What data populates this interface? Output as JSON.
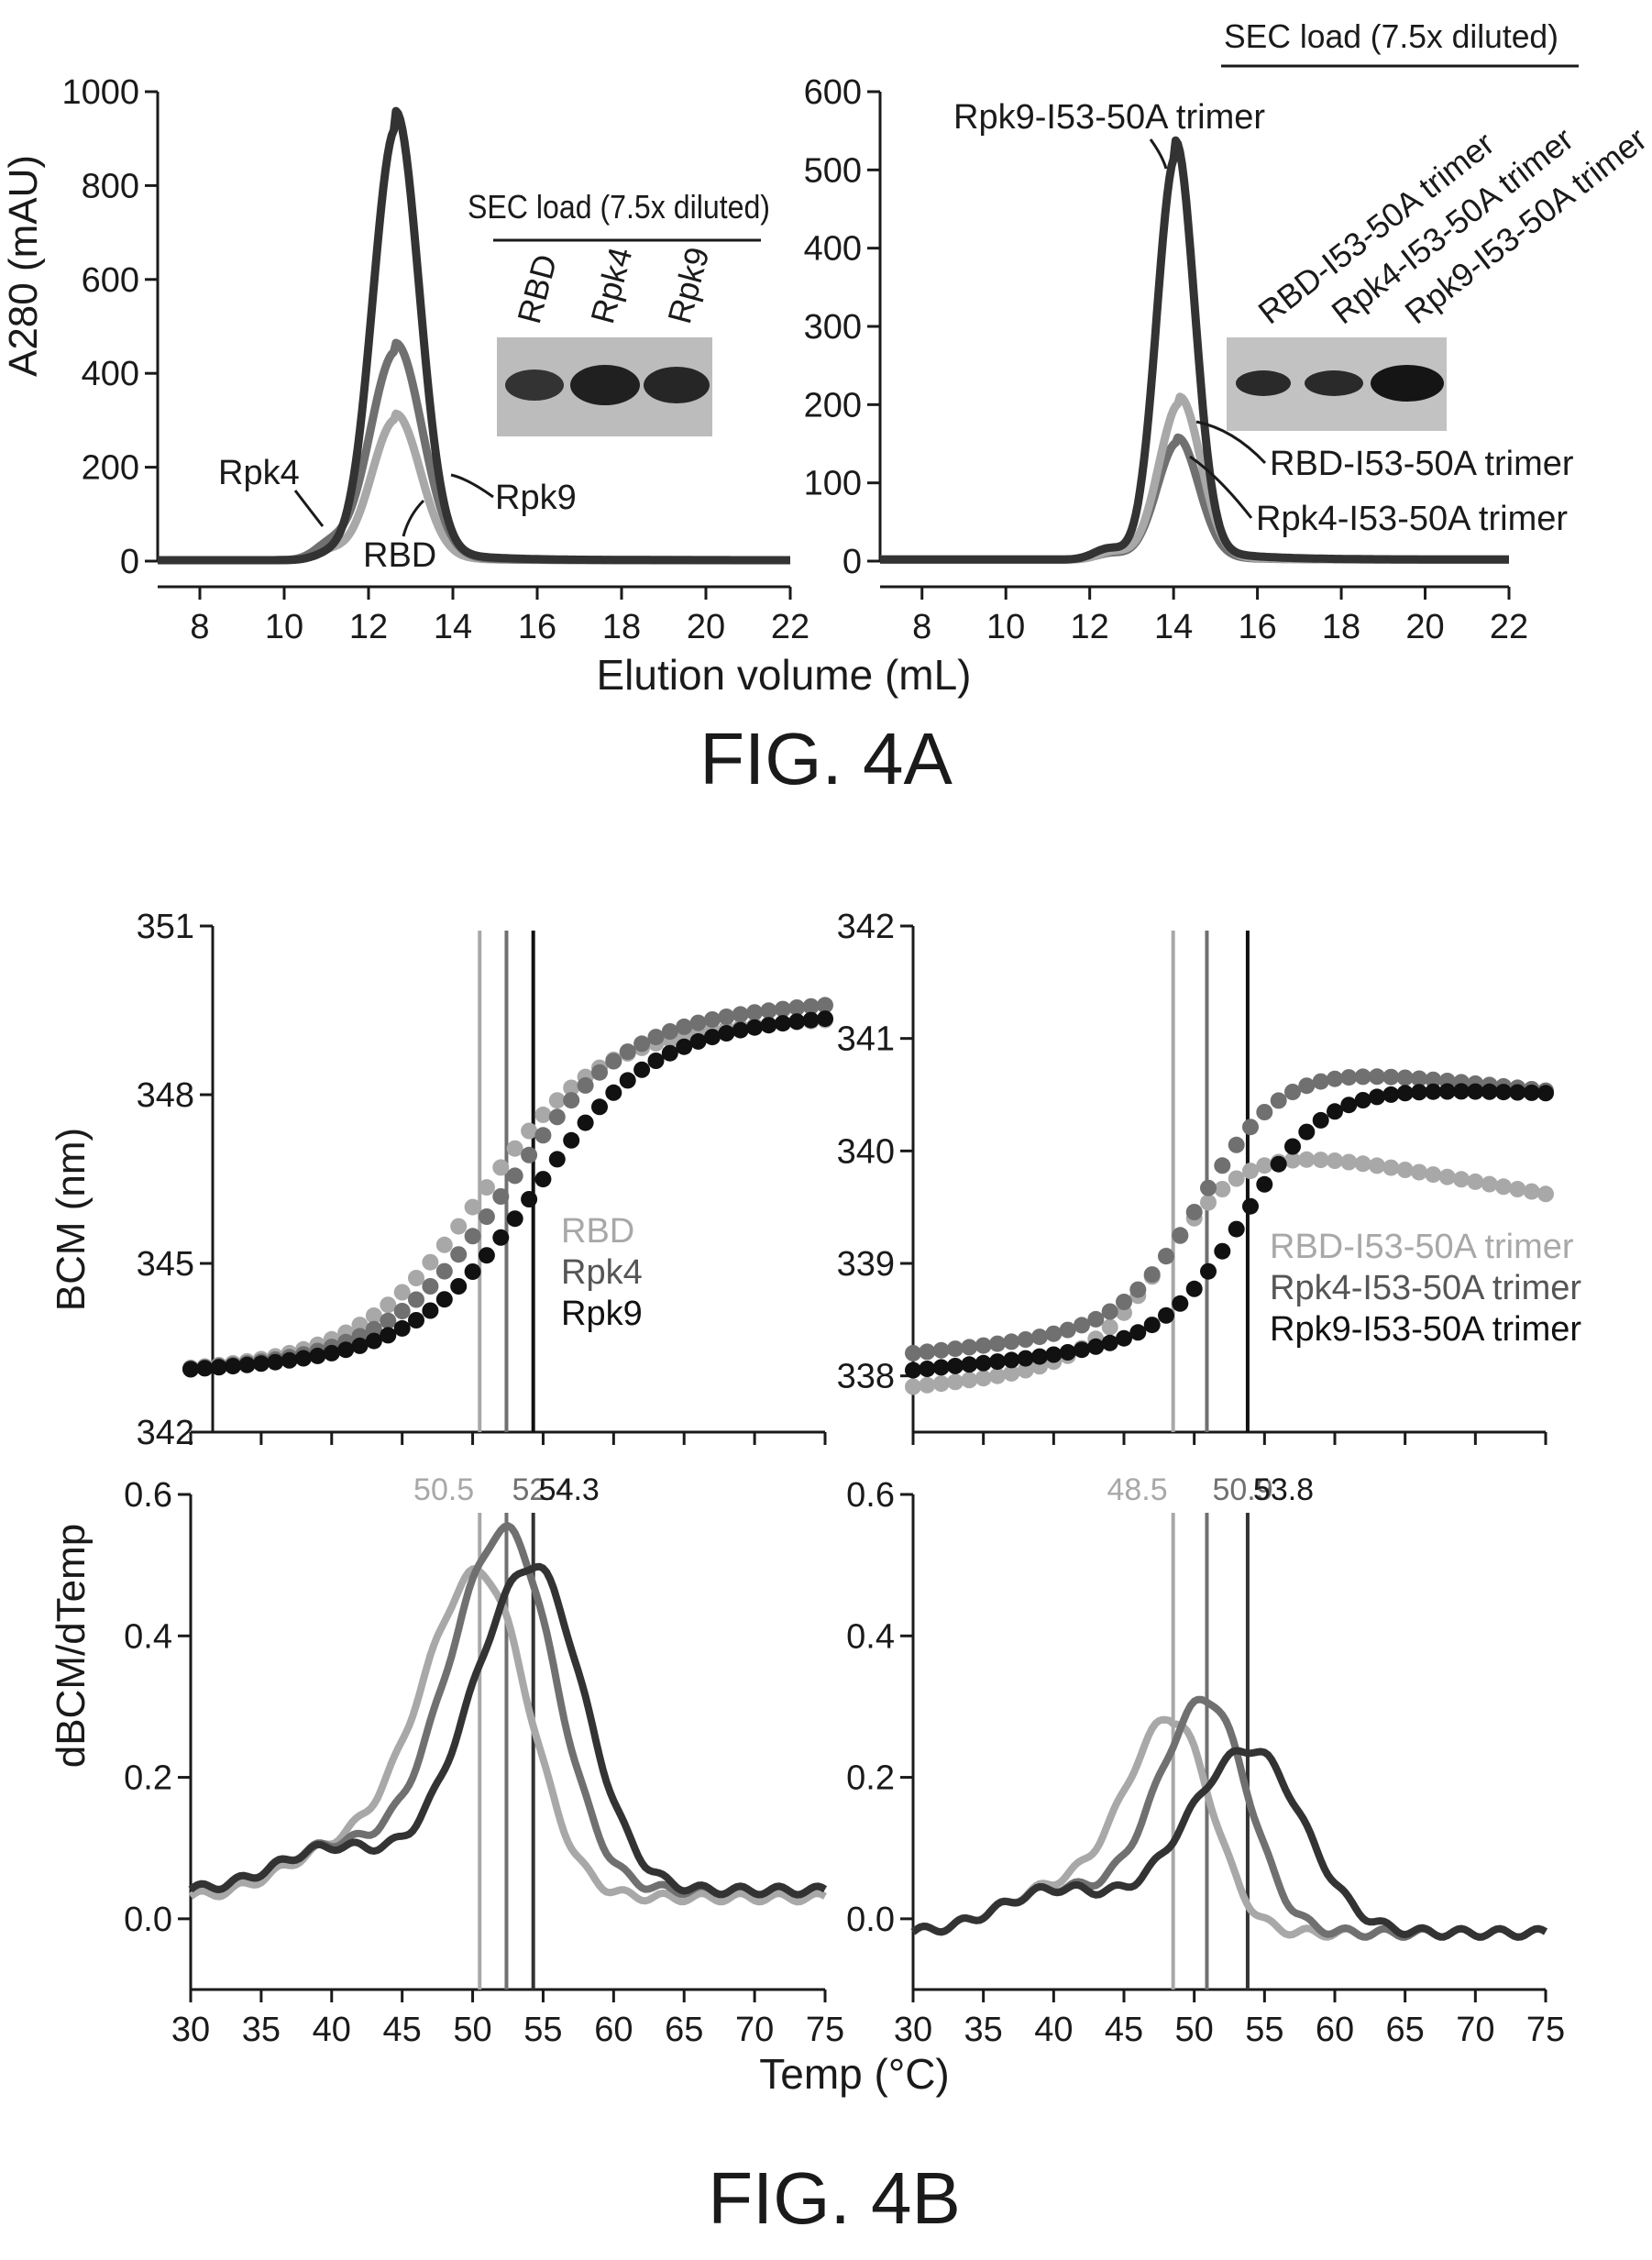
{
  "figure_labels": {
    "fig_4a": "FIG. 4A",
    "fig_4b": "FIG. 4B"
  },
  "colors": {
    "dark": "#333333",
    "mid": "#707070",
    "light": "#a8a8a8",
    "black": "#111111",
    "gel": "#b9b9b9",
    "band": "#262626"
  },
  "chart_data": [
    {
      "id": "sec-left",
      "type": "line",
      "xlabel": "Elution volume (mL)",
      "ylabel": "A280 (mAU)",
      "xlim": [
        7,
        22
      ],
      "ylim": [
        0,
        1000
      ],
      "x_ticks": [
        8,
        10,
        12,
        14,
        16,
        18,
        20,
        22
      ],
      "y_ticks": [
        0,
        200,
        400,
        600,
        800,
        1000
      ],
      "series": [
        {
          "name": "Rpk9",
          "color": "#333333",
          "peak": 920,
          "center": 12.65,
          "width": 0.55,
          "shoulder": 12,
          "base": 2
        },
        {
          "name": "Rpk4",
          "color": "#707070",
          "peak": 445,
          "center": 12.65,
          "width": 0.62,
          "shoulder": 28,
          "base": 2
        },
        {
          "name": "RBD",
          "color": "#a8a8a8",
          "peak": 300,
          "center": 12.65,
          "width": 0.58,
          "shoulder": 18,
          "base": 2
        }
      ],
      "annotations": [
        "Rpk4",
        "RBD",
        "Rpk9"
      ],
      "inset": {
        "title": "SEC load (7.5x diluted)",
        "lanes": [
          "RBD",
          "Rpk4",
          "Rpk9"
        ]
      }
    },
    {
      "id": "sec-right",
      "type": "line",
      "xlabel": "",
      "ylabel": "",
      "xlim": [
        7,
        22
      ],
      "ylim": [
        0,
        600
      ],
      "x_ticks": [
        8,
        10,
        12,
        14,
        16,
        18,
        20,
        22
      ],
      "y_ticks": [
        0,
        100,
        200,
        300,
        400,
        500,
        600
      ],
      "series": [
        {
          "name": "Rpk9-I53-50A trimer",
          "color": "#333333",
          "peak": 515,
          "center": 14.05,
          "width": 0.45,
          "shoulder": 14,
          "base": 2
        },
        {
          "name": "RBD-I53-50A trimer",
          "color": "#a8a8a8",
          "peak": 200,
          "center": 14.15,
          "width": 0.5,
          "shoulder": 10,
          "base": 2
        },
        {
          "name": "Rpk4-I53-50A trimer",
          "color": "#707070",
          "peak": 150,
          "center": 14.1,
          "width": 0.5,
          "shoulder": 8,
          "base": 2
        }
      ],
      "annotations": [
        "Rpk9-I53-50A trimer",
        "RBD-I53-50A trimer",
        "Rpk4-I53-50A trimer"
      ],
      "inset": {
        "title": "SEC load (7.5x diluted)",
        "lanes": [
          "RBD-I53-50A trimer",
          "Rpk4-I53-50A trimer",
          "Rpk9-I53-50A trimer"
        ]
      }
    },
    {
      "id": "bcm-left",
      "type": "scatter",
      "xlabel": "",
      "ylabel": "BCM (nm)",
      "xlim": [
        30,
        75
      ],
      "ylim": [
        342,
        351
      ],
      "y_ticks": [
        342,
        345,
        348,
        351
      ],
      "series": [
        {
          "name": "RBD",
          "color": "#a8a8a8",
          "tm": 50.5,
          "low": 343.1,
          "high": 349.0,
          "k": 0.24,
          "drift": 0.014
        },
        {
          "name": "Rpk4",
          "color": "#707070",
          "tm": 52.4,
          "low": 343.1,
          "high": 349.3,
          "k": 0.24,
          "drift": 0.014
        },
        {
          "name": "Rpk9",
          "color": "#111111",
          "tm": 54.3,
          "low": 343.1,
          "high": 349.1,
          "k": 0.24,
          "drift": 0.014
        }
      ],
      "vlines": [
        50.5,
        52.4,
        54.3
      ],
      "legend": [
        "RBD",
        "Rpk4",
        "Rpk9"
      ]
    },
    {
      "id": "bcm-right",
      "type": "scatter",
      "xlabel": "",
      "ylabel": "",
      "xlim": [
        30,
        75
      ],
      "ylim": [
        337.5,
        342
      ],
      "y_ticks": [
        338,
        339,
        340,
        341,
        342
      ],
      "series": [
        {
          "name": "RBD-I53-50A trimer",
          "color": "#a8a8a8",
          "tm": 48.5,
          "low": 337.9,
          "high": 340.2,
          "k": 0.35,
          "drift": -0.022
        },
        {
          "name": "Rpk4-I53-50A trimer",
          "color": "#707070",
          "tm": 50.9,
          "low": 338.2,
          "high": 340.85,
          "k": 0.35,
          "drift": -0.013
        },
        {
          "name": "Rpk9-I53-50A trimer",
          "color": "#111111",
          "tm": 53.8,
          "low": 338.05,
          "high": 340.6,
          "k": 0.35,
          "drift": -0.004
        }
      ],
      "vlines": [
        48.5,
        50.9,
        53.8
      ],
      "legend": [
        "RBD-I53-50A trimer",
        "Rpk4-I53-50A trimer",
        "Rpk9-I53-50A trimer"
      ]
    },
    {
      "id": "deriv-left",
      "type": "line",
      "xlabel": "Temp (°C)",
      "ylabel": "dBCM/dTemp",
      "xlim": [
        30,
        75
      ],
      "ylim": [
        -0.1,
        0.6
      ],
      "x_ticks": [
        30,
        35,
        40,
        45,
        50,
        55,
        60,
        65,
        70,
        75
      ],
      "y_ticks": [
        0.0,
        0.2,
        0.4,
        0.6
      ],
      "series": [
        {
          "name": "RBD",
          "color": "#a8a8a8",
          "peak": 0.49,
          "center": 50.5,
          "width": 4.0,
          "base": 0.03
        },
        {
          "name": "Rpk4",
          "color": "#707070",
          "peak": 0.55,
          "center": 52.4,
          "width": 4.0,
          "base": 0.04
        },
        {
          "name": "Rpk9",
          "color": "#333333",
          "peak": 0.5,
          "center": 54.3,
          "width": 4.2,
          "base": 0.04
        }
      ],
      "vlines": [
        50.5,
        52.4,
        54.3
      ],
      "vline_labels": [
        "50.5",
        "52.4",
        "54.3"
      ]
    },
    {
      "id": "deriv-right",
      "type": "line",
      "xlabel": "",
      "ylabel": "",
      "xlim": [
        30,
        75
      ],
      "ylim": [
        -0.1,
        0.6
      ],
      "x_ticks": [
        30,
        35,
        40,
        45,
        50,
        55,
        60,
        65,
        70,
        75
      ],
      "y_ticks": [
        0.0,
        0.2,
        0.4,
        0.6
      ],
      "series": [
        {
          "name": "RBD-I53-50A trimer",
          "color": "#a8a8a8",
          "peak": 0.28,
          "center": 48.5,
          "width": 3.2,
          "base": -0.02
        },
        {
          "name": "Rpk4-I53-50A trimer",
          "color": "#707070",
          "peak": 0.31,
          "center": 50.9,
          "width": 3.4,
          "base": -0.02
        },
        {
          "name": "Rpk9-I53-50A trimer",
          "color": "#333333",
          "peak": 0.24,
          "center": 54.0,
          "width": 4.4,
          "base": -0.02
        }
      ],
      "vlines": [
        48.5,
        50.9,
        53.8
      ],
      "vline_labels": [
        "48.5",
        "50.9",
        "53.8"
      ]
    }
  ]
}
